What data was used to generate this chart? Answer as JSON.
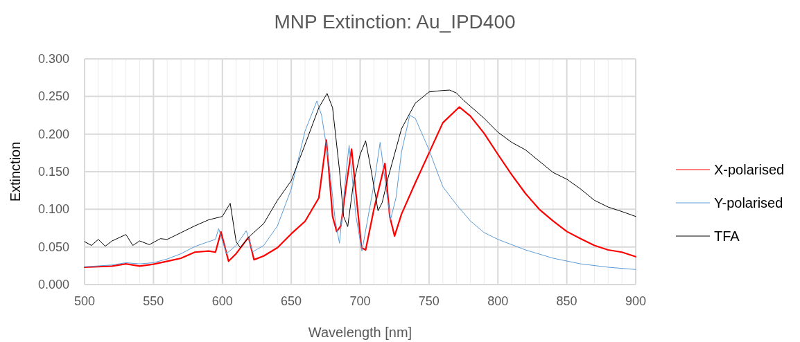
{
  "chart_data": {
    "type": "line",
    "title": "MNP Extinction: Au_IPD400",
    "xlabel": "Wavelength [nm]",
    "ylabel": "Extinction",
    "xlim": [
      500,
      900
    ],
    "xticks": [
      500,
      {
        "value": 510,
        "label": null
      },
      {
        "value": 520,
        "label": null
      },
      {
        "value": 530,
        "label": null
      },
      {
        "value": 540,
        "label": null
      },
      550,
      {
        "value": 560,
        "label": null
      },
      {
        "value": 570,
        "label": null
      },
      {
        "value": 580,
        "label": null
      },
      {
        "value": 590,
        "label": null
      },
      600,
      {
        "value": 610,
        "label": null
      },
      {
        "value": 620,
        "label": null
      },
      {
        "value": 630,
        "label": null
      },
      {
        "value": 640,
        "label": null
      },
      650,
      {
        "value": 660,
        "label": null
      },
      {
        "value": 670,
        "label": null
      },
      {
        "value": 680,
        "label": null
      },
      {
        "value": 690,
        "label": null
      },
      700,
      {
        "value": 710,
        "label": null
      },
      {
        "value": 720,
        "label": null
      },
      {
        "value": 730,
        "label": null
      },
      {
        "value": 740,
        "label": null
      },
      750,
      {
        "value": 760,
        "label": null
      },
      {
        "value": 770,
        "label": null
      },
      {
        "value": 780,
        "label": null
      },
      {
        "value": 790,
        "label": null
      },
      800,
      {
        "value": 810,
        "label": null
      },
      {
        "value": 820,
        "label": null
      },
      {
        "value": 830,
        "label": null
      },
      {
        "value": 840,
        "label": null
      },
      850,
      {
        "value": 860,
        "label": null
      },
      {
        "value": 870,
        "label": null
      },
      {
        "value": 880,
        "label": null
      },
      {
        "value": 890,
        "label": null
      },
      900
    ],
    "ylim": [
      0,
      0.3
    ],
    "yticks": [
      {
        "value": 0,
        "label": "0.000"
      },
      {
        "value": 0.05,
        "label": "0.050"
      },
      {
        "value": 0.1,
        "label": "0.100"
      },
      {
        "value": 0.15,
        "label": "0.150"
      },
      {
        "value": 0.2,
        "label": "0.200"
      },
      {
        "value": 0.25,
        "label": "0.250"
      },
      {
        "value": 0.3,
        "label": "0.300"
      }
    ],
    "grid": true,
    "legend": "right",
    "series": [
      {
        "name": "X-polarised",
        "color": "#ff0000",
        "x": [
          500,
          520,
          530,
          540,
          550,
          560,
          570,
          580,
          590,
          595,
          599,
          604.5,
          610,
          619,
          623,
          630,
          640,
          650,
          660,
          670,
          675.5,
          680,
          683,
          686,
          690,
          693.8,
          697,
          701,
          704,
          710,
          718,
          721.5,
          725,
          730,
          740,
          750,
          760,
          772,
          780,
          790,
          800,
          810,
          820,
          830,
          840,
          850,
          860,
          870,
          880,
          890,
          900
        ],
        "values": [
          0.023,
          0.0245,
          0.0275,
          0.0245,
          0.027,
          0.031,
          0.035,
          0.043,
          0.0445,
          0.043,
          0.07,
          0.031,
          0.041,
          0.063,
          0.033,
          0.038,
          0.049,
          0.0675,
          0.084,
          0.115,
          0.192,
          0.0905,
          0.0705,
          0.078,
          0.133,
          0.18,
          0.121,
          0.049,
          0.046,
          0.1,
          0.161,
          0.0905,
          0.0645,
          0.0935,
          0.135,
          0.175,
          0.215,
          0.236,
          0.224,
          0.201,
          0.173,
          0.146,
          0.121,
          0.1,
          0.0845,
          0.0705,
          0.061,
          0.052,
          0.046,
          0.043,
          0.037
        ]
      },
      {
        "name": "Y-polarised",
        "color": "#5b9bd5",
        "x": [
          500,
          520,
          530,
          540,
          550,
          560,
          570,
          580,
          590,
          595,
          597.3,
          603,
          610,
          617.4,
          622,
          630,
          640,
          650,
          660,
          668.6,
          672,
          677,
          682,
          685,
          690,
          692,
          697,
          701.3,
          710,
          714.5,
          718,
          722,
          726,
          730,
          736,
          740,
          750,
          760,
          770,
          780,
          790,
          800,
          820,
          840,
          860,
          880,
          900
        ],
        "values": [
          0.0236,
          0.026,
          0.029,
          0.0275,
          0.029,
          0.034,
          0.041,
          0.0505,
          0.057,
          0.06,
          0.0745,
          0.041,
          0.052,
          0.0715,
          0.0435,
          0.052,
          0.078,
          0.127,
          0.204,
          0.244,
          0.225,
          0.167,
          0.084,
          0.055,
          0.152,
          0.185,
          0.0905,
          0.0445,
          0.133,
          0.189,
          0.14,
          0.086,
          0.115,
          0.176,
          0.225,
          0.221,
          0.179,
          0.13,
          0.106,
          0.0845,
          0.069,
          0.06,
          0.046,
          0.035,
          0.0275,
          0.023,
          0.02
        ]
      },
      {
        "name": "TFA",
        "color": "#000000",
        "x": [
          500,
          505,
          510,
          515,
          520,
          530,
          535,
          540,
          547,
          555,
          560,
          570,
          580,
          590,
          600,
          605.7,
          610,
          613,
          620,
          630,
          640,
          650,
          660,
          670,
          676,
          680,
          685,
          688,
          691,
          695,
          700,
          704,
          708,
          713,
          716,
          720,
          730,
          740,
          750,
          760,
          765,
          770,
          775,
          780,
          790,
          800,
          810,
          820,
          830,
          840,
          850,
          860,
          870,
          880,
          890,
          900
        ],
        "values": [
          0.057,
          0.052,
          0.06,
          0.051,
          0.058,
          0.0665,
          0.052,
          0.058,
          0.053,
          0.061,
          0.06,
          0.069,
          0.078,
          0.086,
          0.0905,
          0.108,
          0.057,
          0.049,
          0.0645,
          0.081,
          0.112,
          0.138,
          0.186,
          0.235,
          0.254,
          0.235,
          0.152,
          0.0905,
          0.077,
          0.133,
          0.173,
          0.191,
          0.152,
          0.098,
          0.109,
          0.14,
          0.207,
          0.241,
          0.256,
          0.258,
          0.2585,
          0.2545,
          0.245,
          0.237,
          0.221,
          0.2025,
          0.189,
          0.179,
          0.164,
          0.149,
          0.14,
          0.127,
          0.112,
          0.103,
          0.097,
          0.0905
        ]
      }
    ]
  }
}
